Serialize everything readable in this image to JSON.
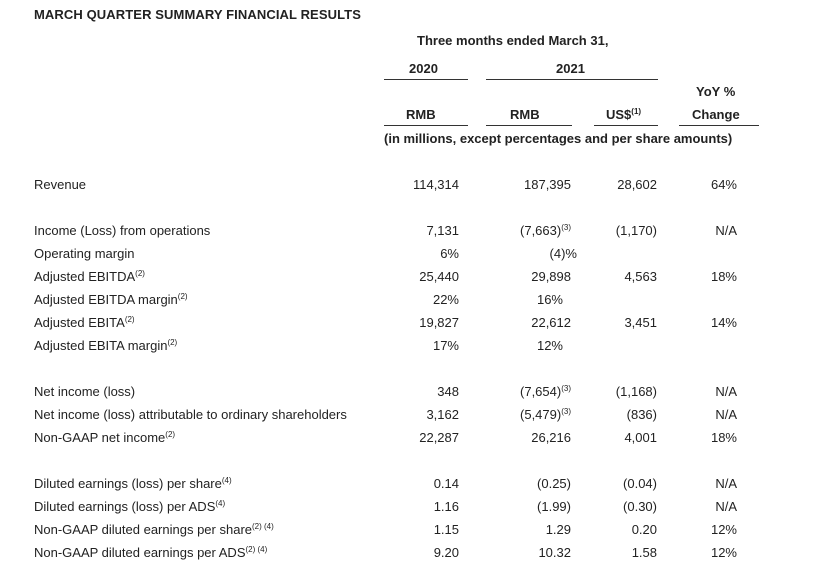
{
  "title": "MARCH QUARTER SUMMARY FINANCIAL RESULTS",
  "header": {
    "period": "Three months ended March 31,",
    "year_2020": "2020",
    "year_2021": "2021",
    "yoy_line1": "YoY %",
    "yoy_line2": "Change",
    "rmb_2020": "RMB",
    "rmb_2021": "RMB",
    "usd": "US$",
    "usd_note": "(1)",
    "units": "(in millions, except percentages and per share amounts)"
  },
  "rows": [
    {
      "label": "Revenue",
      "label_note": "",
      "v2020": "114,314",
      "v2020_note": "",
      "v2021": "187,395",
      "v2021_note": "",
      "usd": "28,602",
      "yoy": "64%"
    },
    {
      "label": "Income (Loss) from operations",
      "label_note": "",
      "v2020": "7,131",
      "v2020_note": "",
      "v2021": "(7,663)",
      "v2021_note": "(3)",
      "usd": "(1,170)",
      "yoy": "N/A"
    },
    {
      "label": "Operating margin",
      "label_note": "",
      "v2020": "6%",
      "v2020_note": "",
      "v2021": "(4)%",
      "v2021_note": "",
      "usd": "",
      "yoy": ""
    },
    {
      "label": "Adjusted EBITDA",
      "label_note": "(2)",
      "v2020": "25,440",
      "v2020_note": "",
      "v2021": "29,898",
      "v2021_note": "",
      "usd": "4,563",
      "yoy": "18%"
    },
    {
      "label": "Adjusted EBITDA margin",
      "label_note": "(2)",
      "v2020": "22%",
      "v2020_note": "",
      "v2021": "16%",
      "v2021_note": "",
      "usd": "",
      "yoy": ""
    },
    {
      "label": "Adjusted EBITA",
      "label_note": "(2)",
      "v2020": "19,827",
      "v2020_note": "",
      "v2021": "22,612",
      "v2021_note": "",
      "usd": "3,451",
      "yoy": "14%"
    },
    {
      "label": "Adjusted EBITA margin",
      "label_note": "(2)",
      "v2020": "17%",
      "v2020_note": "",
      "v2021": "12%",
      "v2021_note": "",
      "usd": "",
      "yoy": ""
    },
    {
      "label": "Net income (loss)",
      "label_note": "",
      "v2020": "348",
      "v2020_note": "",
      "v2021": "(7,654)",
      "v2021_note": "(3)",
      "usd": "(1,168)",
      "yoy": "N/A"
    },
    {
      "label": "Net income (loss) attributable to ordinary shareholders",
      "label_note": "",
      "v2020": "3,162",
      "v2020_note": "",
      "v2021": "(5,479)",
      "v2021_note": "(3)",
      "usd": "(836)",
      "yoy": "N/A"
    },
    {
      "label": "Non-GAAP net income",
      "label_note": "(2)",
      "v2020": "22,287",
      "v2020_note": "",
      "v2021": "26,216",
      "v2021_note": "",
      "usd": "4,001",
      "yoy": "18%"
    },
    {
      "label": "Diluted earnings (loss) per share",
      "label_note": "(4)",
      "v2020": "0.14",
      "v2020_note": "",
      "v2021": "(0.25)",
      "v2021_note": "",
      "usd": "(0.04)",
      "yoy": "N/A"
    },
    {
      "label": "Diluted earnings (loss) per ADS",
      "label_note": "(4)",
      "v2020": "1.16",
      "v2020_note": "",
      "v2021": "(1.99)",
      "v2021_note": "",
      "usd": "(0.30)",
      "yoy": "N/A"
    },
    {
      "label": "Non-GAAP diluted earnings per share",
      "label_note": "(2) (4)",
      "v2020": "1.15",
      "v2020_note": "",
      "v2021": "1.29",
      "v2021_note": "",
      "usd": "0.20",
      "yoy": "12%"
    },
    {
      "label": "Non-GAAP diluted earnings per ADS",
      "label_note": "(2) (4)",
      "v2020": "9.20",
      "v2020_note": "",
      "v2021": "10.32",
      "v2021_note": "",
      "usd": "1.58",
      "yoy": "12%"
    }
  ]
}
